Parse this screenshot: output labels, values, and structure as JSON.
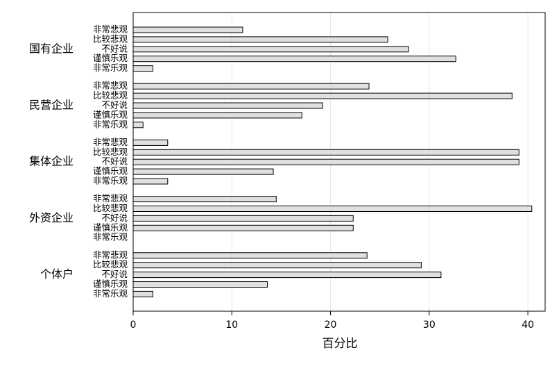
{
  "chart_data": {
    "type": "hbar-grouped",
    "categories": [
      "国有企业",
      "民营企业",
      "集体企业",
      "外资企业",
      "个体户"
    ],
    "series": [
      {
        "name": "非常悲观",
        "color": "#e0e0e0",
        "values": [
          11.1,
          23.9,
          3.5,
          14.5,
          23.7
        ]
      },
      {
        "name": "比较悲观",
        "color": "#e0e0e0",
        "values": [
          25.8,
          38.4,
          39.1,
          40.4,
          29.2
        ]
      },
      {
        "name": "不好说",
        "color": "#e0e0e0",
        "values": [
          27.9,
          19.2,
          39.1,
          22.3,
          31.2
        ]
      },
      {
        "name": "谨慎乐观",
        "color": "#e0e0e0",
        "values": [
          32.7,
          17.1,
          14.2,
          22.3,
          13.6
        ]
      },
      {
        "name": "非常乐观",
        "color": "#e0e0e0",
        "values": [
          2.0,
          1.0,
          3.5,
          0,
          2.0
        ]
      }
    ],
    "xlabel": "百分比",
    "xlim": [
      0,
      41.75
    ],
    "xticks": [
      0,
      10,
      20,
      30,
      40
    ],
    "grid": true
  }
}
